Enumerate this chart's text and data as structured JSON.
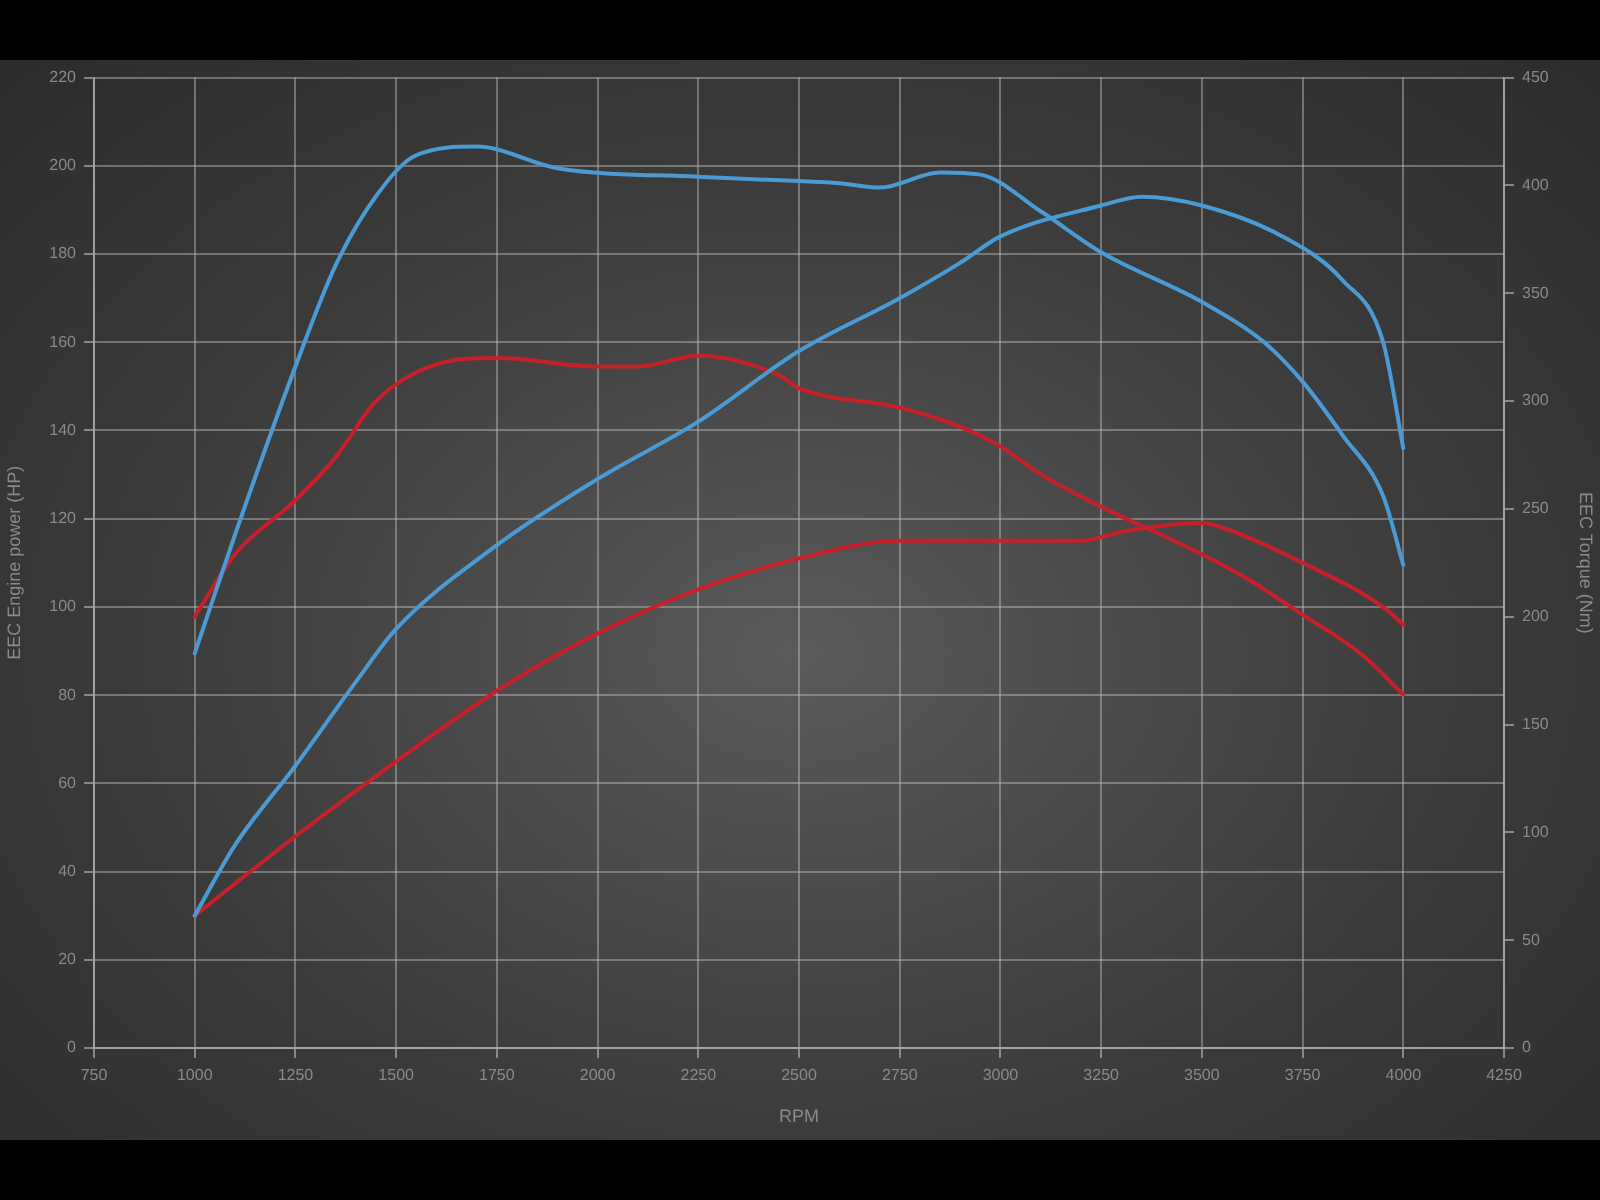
{
  "chart_data": {
    "type": "line",
    "xlabel": "RPM",
    "ylabel": "EEC Engine power (HP)",
    "y2label": "EEC Torque (Nm)",
    "xlim": [
      750,
      4250
    ],
    "xticks": [
      750,
      1000,
      1250,
      1500,
      1750,
      2000,
      2250,
      2500,
      2750,
      3000,
      3250,
      3500,
      3750,
      4000,
      4250
    ],
    "ylim": [
      0,
      220
    ],
    "yticks": [
      0,
      20,
      40,
      60,
      80,
      100,
      120,
      140,
      160,
      180,
      200,
      220
    ],
    "y2lim": [
      0,
      450
    ],
    "y2ticks": [
      0,
      50,
      100,
      150,
      200,
      250,
      300,
      350,
      400,
      450
    ],
    "grid": true,
    "legend": false,
    "marker": "none",
    "line_style": "solid",
    "series": [
      {
        "color": "#4a9ad4",
        "axis": "y2",
        "x": [
          1000,
          1100,
          1250,
          1350,
          1450,
          1550,
          1700,
          1900,
          2250,
          2500,
          2600,
          2700,
          2850,
          2950,
          3100,
          3250,
          3500,
          3650,
          3750,
          3850,
          3950,
          4000
        ],
        "values": [
          183,
          238,
          316,
          363,
          395,
          414,
          418,
          408,
          404,
          402,
          401,
          399,
          406,
          405,
          388,
          369,
          346,
          328,
          309,
          284,
          256,
          224
        ]
      },
      {
        "color": "#4a9ad4",
        "x": [
          1000,
          1100,
          1250,
          1400,
          1500,
          1750,
          2000,
          2250,
          2500,
          2750,
          2900,
          3000,
          3250,
          3350,
          3500,
          3700,
          3850,
          3950,
          4000
        ],
        "values": [
          30,
          46,
          64,
          83,
          95,
          114,
          129,
          142,
          158,
          170,
          178,
          184,
          191,
          193,
          191,
          184,
          174,
          160,
          136
        ]
      },
      {
        "color": "#c8202a",
        "axis": "y2",
        "x": [
          1000,
          1100,
          1250,
          1350,
          1450,
          1600,
          1750,
          2000,
          2100,
          2250,
          2450,
          2500,
          2750,
          2900,
          3000,
          3100,
          3250,
          3500,
          3600,
          3750,
          3900,
          4000
        ],
        "values": [
          200,
          229,
          254,
          274,
          300,
          317,
          320,
          316,
          316,
          321,
          312,
          306,
          297,
          288,
          279,
          266,
          251,
          229,
          219,
          201,
          182,
          164
        ]
      },
      {
        "color": "#c8202a",
        "x": [
          1000,
          1250,
          1500,
          1750,
          2000,
          2250,
          2500,
          2750,
          3000,
          3200,
          3300,
          3500,
          3550,
          3750,
          3950,
          4000
        ],
        "values": [
          30,
          48,
          65,
          81,
          94,
          104,
          111,
          115,
          115,
          115,
          117,
          119,
          118,
          110,
          100,
          96
        ]
      }
    ]
  }
}
